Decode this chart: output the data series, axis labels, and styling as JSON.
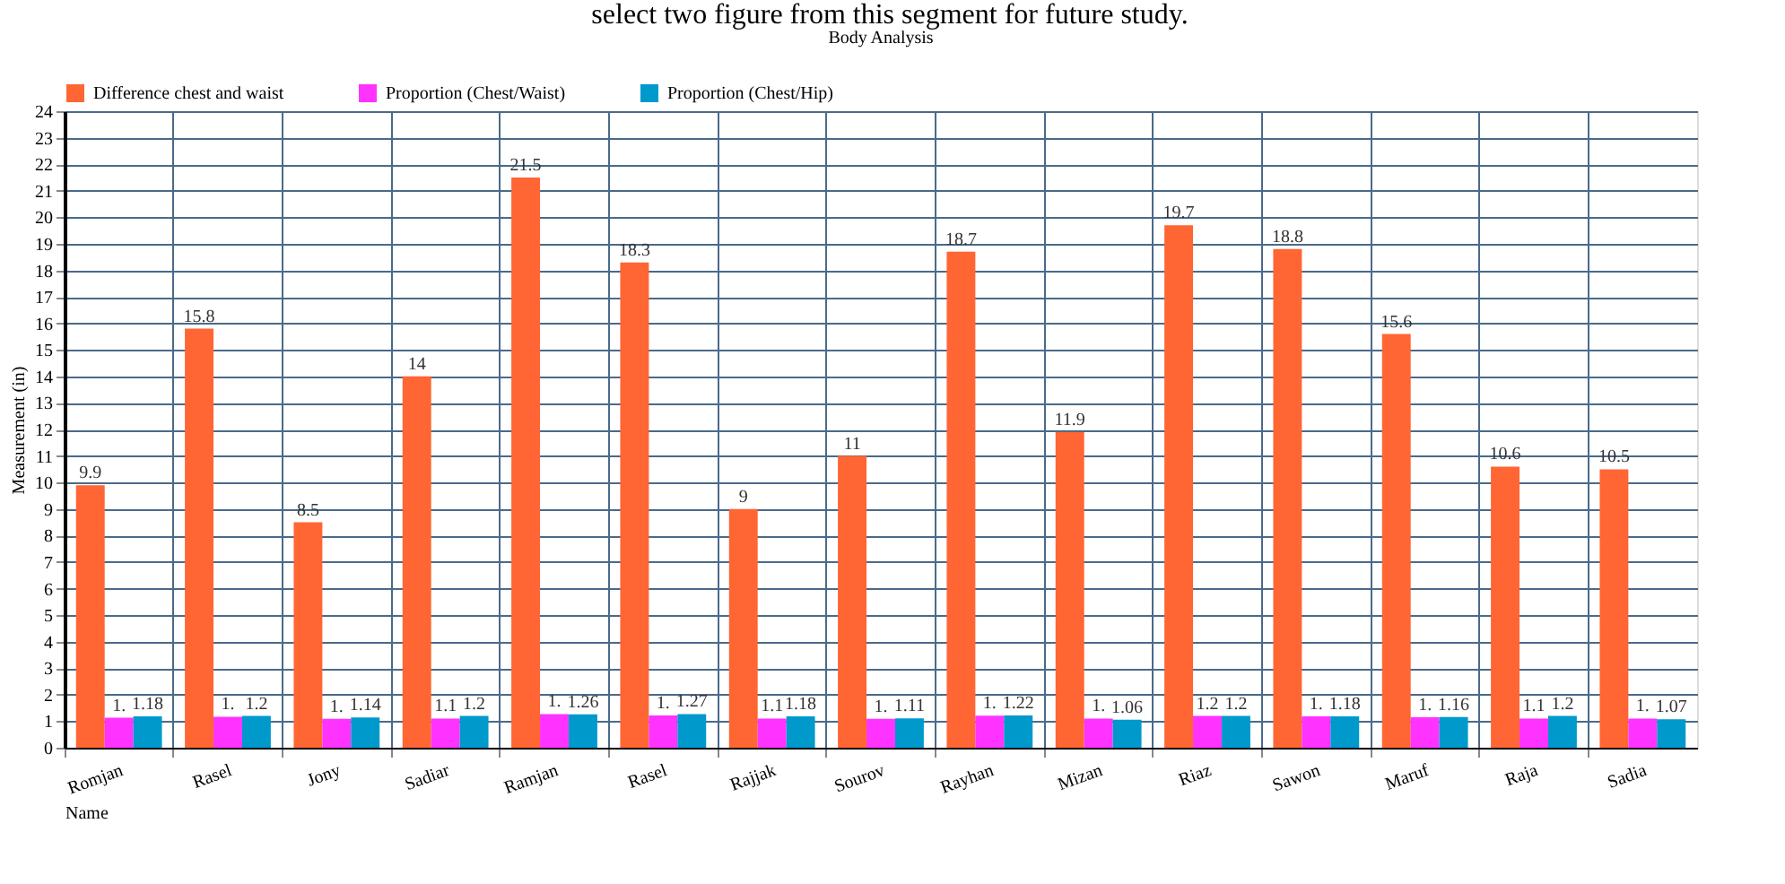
{
  "chart_data": {
    "type": "bar",
    "title": "Body Analysis",
    "xlabel": "Name",
    "ylabel": "Measurement (in)",
    "annotations": [
      "select two figure from this segment for future study."
    ],
    "categories": [
      "Romjan",
      "Rasel",
      "Jony",
      "Sadiar",
      "Ramjan",
      "Rasel",
      "Rajjak",
      "Sourov",
      "Rayhan",
      "Mizan",
      "Riaz",
      "Sawon",
      "Maruf",
      "Raja",
      "Sadia"
    ],
    "series": [
      {
        "name": "Difference chest and waist",
        "color": "#ff6633",
        "values": [
          9.9,
          15.8,
          8.5,
          14,
          21.5,
          18.3,
          9,
          11,
          18.7,
          11.9,
          19.7,
          18.8,
          15.6,
          10.6,
          10.5
        ],
        "value_labels": [
          "9.9",
          "15.8",
          "8.5",
          "14",
          "21.5",
          "18.3",
          "9",
          "11",
          "18.7",
          "11.9",
          "19.7",
          "18.8",
          "15.6",
          "10.6",
          "10.5"
        ]
      },
      {
        "name": "Proportion (Chest/Waist)",
        "color": "#ff33ff",
        "values": [
          1.13,
          1.17,
          1.09,
          1.1,
          1.27,
          1.22,
          1.1,
          1.09,
          1.21,
          1.1,
          1.2,
          1.18,
          1.15,
          1.1,
          1.1
        ],
        "value_labels": [
          "1.",
          "1.",
          "1.",
          "1.1",
          "1.",
          "1.",
          "1.1",
          "1.",
          "1.",
          "1.",
          "1.2",
          "1.",
          "1.",
          "1.1",
          "1."
        ]
      },
      {
        "name": "Proportion (Chest/Hip)",
        "color": "#0099cc",
        "values": [
          1.18,
          1.2,
          1.14,
          1.2,
          1.26,
          1.27,
          1.18,
          1.11,
          1.22,
          1.06,
          1.2,
          1.18,
          1.16,
          1.2,
          1.07
        ],
        "value_labels": [
          "1.18",
          "1.2",
          "1.14",
          "1.2",
          "1.26",
          "1.27",
          "1.18",
          "1.11",
          "1.22",
          "1.06",
          "1.2",
          "1.18",
          "1.16",
          "1.2",
          "1.07"
        ]
      }
    ],
    "ylim": [
      0,
      24
    ],
    "yticks": [
      0,
      1,
      2,
      3,
      4,
      5,
      6,
      7,
      8,
      9,
      10,
      11,
      12,
      13,
      14,
      15,
      16,
      17,
      18,
      19,
      20,
      21,
      22,
      23,
      24
    ],
    "grid": true,
    "legend": "top left"
  }
}
